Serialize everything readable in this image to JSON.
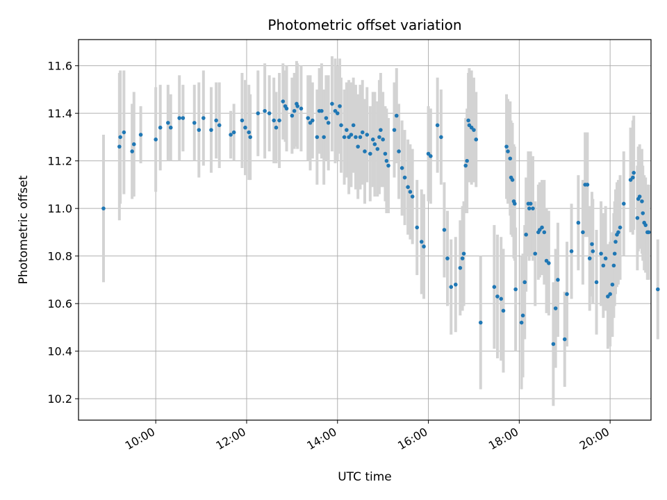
{
  "chart_data": {
    "type": "scatter",
    "title": "Photometric offset variation",
    "xlabel": "UTC time",
    "ylabel": "Photometric offset",
    "x_unit": "hours UTC",
    "xlim": [
      8.3,
      20.9
    ],
    "ylim": [
      10.11,
      11.71
    ],
    "x_ticks": [
      {
        "value": 10,
        "label": "10:00"
      },
      {
        "value": 12,
        "label": "12:00"
      },
      {
        "value": 14,
        "label": "14:00"
      },
      {
        "value": 16,
        "label": "16:00"
      },
      {
        "value": 18,
        "label": "18:00"
      },
      {
        "value": 20,
        "label": "20:00"
      }
    ],
    "y_ticks": [
      {
        "value": 10.2,
        "label": "10.2"
      },
      {
        "value": 10.4,
        "label": "10.4"
      },
      {
        "value": 10.6,
        "label": "10.6"
      },
      {
        "value": 10.8,
        "label": "10.8"
      },
      {
        "value": 11.0,
        "label": "11.0"
      },
      {
        "value": 11.2,
        "label": "11.2"
      },
      {
        "value": 11.4,
        "label": "11.4"
      },
      {
        "value": 11.6,
        "label": "11.6"
      }
    ],
    "grid": true,
    "legend": "none",
    "marker_color": "#1f77b4",
    "errorbar_color": "#d3d3d3",
    "points": [
      [
        8.85,
        11.0,
        0.31
      ],
      [
        9.2,
        11.26,
        0.31
      ],
      [
        9.22,
        11.3,
        0.28
      ],
      [
        9.3,
        11.32,
        0.26
      ],
      [
        9.48,
        11.24,
        0.2
      ],
      [
        9.52,
        11.27,
        0.22
      ],
      [
        9.67,
        11.31,
        0.12
      ],
      [
        10.0,
        11.29,
        0.22
      ],
      [
        10.1,
        11.34,
        0.18
      ],
      [
        10.27,
        11.36,
        0.16
      ],
      [
        10.33,
        11.34,
        0.14
      ],
      [
        10.52,
        11.38,
        0.18
      ],
      [
        10.6,
        11.38,
        0.14
      ],
      [
        10.85,
        11.36,
        0.16
      ],
      [
        10.95,
        11.33,
        0.2
      ],
      [
        11.05,
        11.38,
        0.2
      ],
      [
        11.22,
        11.33,
        0.18
      ],
      [
        11.33,
        11.37,
        0.16
      ],
      [
        11.4,
        11.35,
        0.18
      ],
      [
        11.65,
        11.31,
        0.1
      ],
      [
        11.72,
        11.32,
        0.12
      ],
      [
        11.9,
        11.37,
        0.2
      ],
      [
        11.97,
        11.34,
        0.2
      ],
      [
        12.05,
        11.32,
        0.2
      ],
      [
        12.08,
        11.3,
        0.18
      ],
      [
        12.25,
        11.4,
        0.18
      ],
      [
        12.4,
        11.41,
        0.2
      ],
      [
        12.5,
        11.4,
        0.16
      ],
      [
        12.6,
        11.37,
        0.18
      ],
      [
        12.65,
        11.34,
        0.15
      ],
      [
        12.72,
        11.37,
        0.2
      ],
      [
        12.8,
        11.45,
        0.16
      ],
      [
        12.85,
        11.43,
        0.15
      ],
      [
        12.88,
        11.42,
        0.18
      ],
      [
        13.0,
        11.39,
        0.16
      ],
      [
        13.05,
        11.41,
        0.16
      ],
      [
        13.1,
        11.44,
        0.18
      ],
      [
        13.12,
        11.43,
        0.18
      ],
      [
        13.2,
        11.42,
        0.18
      ],
      [
        13.35,
        11.38,
        0.18
      ],
      [
        13.4,
        11.36,
        0.2
      ],
      [
        13.45,
        11.37,
        0.16
      ],
      [
        13.55,
        11.3,
        0.2
      ],
      [
        13.6,
        11.41,
        0.18
      ],
      [
        13.65,
        11.41,
        0.2
      ],
      [
        13.7,
        11.3,
        0.2
      ],
      [
        13.75,
        11.38,
        0.18
      ],
      [
        13.8,
        11.36,
        0.2
      ],
      [
        13.88,
        11.44,
        0.2
      ],
      [
        13.95,
        11.41,
        0.22
      ],
      [
        14.0,
        11.4,
        0.2
      ],
      [
        14.05,
        11.43,
        0.2
      ],
      [
        14.08,
        11.35,
        0.2
      ],
      [
        14.15,
        11.3,
        0.2
      ],
      [
        14.2,
        11.33,
        0.2
      ],
      [
        14.25,
        11.3,
        0.24
      ],
      [
        14.3,
        11.31,
        0.22
      ],
      [
        14.35,
        11.35,
        0.2
      ],
      [
        14.4,
        11.3,
        0.22
      ],
      [
        14.45,
        11.26,
        0.22
      ],
      [
        14.5,
        11.3,
        0.22
      ],
      [
        14.55,
        11.32,
        0.22
      ],
      [
        14.6,
        11.24,
        0.22
      ],
      [
        14.65,
        11.31,
        0.2
      ],
      [
        14.72,
        11.23,
        0.2
      ],
      [
        14.78,
        11.29,
        0.2
      ],
      [
        14.82,
        11.27,
        0.22
      ],
      [
        14.88,
        11.25,
        0.2
      ],
      [
        14.92,
        11.3,
        0.24
      ],
      [
        14.95,
        11.33,
        0.24
      ],
      [
        15.0,
        11.29,
        0.2
      ],
      [
        15.05,
        11.23,
        0.2
      ],
      [
        15.08,
        11.2,
        0.22
      ],
      [
        15.12,
        11.18,
        0.2
      ],
      [
        15.25,
        11.33,
        0.2
      ],
      [
        15.3,
        11.39,
        0.2
      ],
      [
        15.35,
        11.24,
        0.2
      ],
      [
        15.42,
        11.17,
        0.2
      ],
      [
        15.48,
        11.13,
        0.2
      ],
      [
        15.55,
        11.09,
        0.2
      ],
      [
        15.6,
        11.07,
        0.2
      ],
      [
        15.65,
        11.05,
        0.2
      ],
      [
        15.75,
        10.92,
        0.2
      ],
      [
        15.85,
        10.86,
        0.22
      ],
      [
        15.9,
        10.84,
        0.22
      ],
      [
        16.0,
        11.23,
        0.2
      ],
      [
        16.05,
        11.22,
        0.2
      ],
      [
        16.2,
        11.35,
        0.2
      ],
      [
        16.28,
        11.3,
        0.2
      ],
      [
        16.35,
        10.91,
        0.2
      ],
      [
        16.42,
        10.79,
        0.2
      ],
      [
        16.5,
        10.67,
        0.2
      ],
      [
        16.6,
        10.68,
        0.2
      ],
      [
        16.7,
        10.75,
        0.2
      ],
      [
        16.75,
        10.79,
        0.22
      ],
      [
        16.78,
        10.81,
        0.22
      ],
      [
        16.82,
        11.18,
        0.2
      ],
      [
        16.85,
        11.2,
        0.22
      ],
      [
        16.88,
        11.37,
        0.2
      ],
      [
        16.9,
        11.35,
        0.24
      ],
      [
        16.95,
        11.34,
        0.24
      ],
      [
        17.0,
        11.33,
        0.22
      ],
      [
        17.05,
        11.29,
        0.2
      ],
      [
        17.15,
        10.52,
        0.28
      ],
      [
        17.45,
        10.67,
        0.26
      ],
      [
        17.52,
        10.63,
        0.26
      ],
      [
        17.6,
        10.62,
        0.26
      ],
      [
        17.65,
        10.57,
        0.26
      ],
      [
        17.72,
        11.26,
        0.22
      ],
      [
        17.75,
        11.24,
        0.22
      ],
      [
        17.8,
        11.21,
        0.24
      ],
      [
        17.82,
        11.13,
        0.24
      ],
      [
        17.85,
        11.12,
        0.24
      ],
      [
        17.88,
        11.03,
        0.24
      ],
      [
        17.9,
        11.02,
        0.24
      ],
      [
        17.92,
        10.66,
        0.26
      ],
      [
        18.05,
        10.52,
        0.28
      ],
      [
        18.08,
        10.55,
        0.26
      ],
      [
        18.12,
        10.69,
        0.24
      ],
      [
        18.15,
        10.89,
        0.24
      ],
      [
        18.2,
        11.02,
        0.22
      ],
      [
        18.22,
        11.0,
        0.22
      ],
      [
        18.25,
        11.02,
        0.22
      ],
      [
        18.3,
        11.0,
        0.22
      ],
      [
        18.35,
        10.81,
        0.22
      ],
      [
        18.42,
        10.9,
        0.2
      ],
      [
        18.45,
        10.91,
        0.2
      ],
      [
        18.5,
        10.92,
        0.2
      ],
      [
        18.55,
        10.9,
        0.22
      ],
      [
        18.6,
        10.78,
        0.22
      ],
      [
        18.65,
        10.77,
        0.22
      ],
      [
        18.75,
        10.43,
        0.26
      ],
      [
        18.8,
        10.58,
        0.25
      ],
      [
        18.85,
        10.7,
        0.24
      ],
      [
        19.0,
        10.45,
        0.2
      ],
      [
        19.05,
        10.64,
        0.22
      ],
      [
        19.15,
        10.82,
        0.2
      ],
      [
        19.3,
        10.94,
        0.2
      ],
      [
        19.4,
        10.9,
        0.22
      ],
      [
        19.45,
        11.1,
        0.22
      ],
      [
        19.5,
        11.1,
        0.22
      ],
      [
        19.55,
        10.79,
        0.22
      ],
      [
        19.6,
        10.85,
        0.22
      ],
      [
        19.62,
        10.82,
        0.22
      ],
      [
        19.7,
        10.69,
        0.22
      ],
      [
        19.8,
        10.81,
        0.22
      ],
      [
        19.85,
        10.76,
        0.22
      ],
      [
        19.9,
        10.79,
        0.22
      ],
      [
        19.95,
        10.63,
        0.22
      ],
      [
        20.0,
        10.64,
        0.22
      ],
      [
        20.05,
        10.68,
        0.22
      ],
      [
        20.08,
        10.76,
        0.22
      ],
      [
        20.1,
        10.81,
        0.22
      ],
      [
        20.12,
        10.86,
        0.22
      ],
      [
        20.15,
        10.89,
        0.22
      ],
      [
        20.18,
        10.9,
        0.22
      ],
      [
        20.22,
        10.92,
        0.22
      ],
      [
        20.3,
        11.02,
        0.22
      ],
      [
        20.45,
        11.12,
        0.22
      ],
      [
        20.5,
        11.13,
        0.24
      ],
      [
        20.52,
        11.15,
        0.24
      ],
      [
        20.6,
        10.96,
        0.22
      ],
      [
        20.62,
        11.04,
        0.22
      ],
      [
        20.65,
        11.05,
        0.22
      ],
      [
        20.7,
        11.03,
        0.22
      ],
      [
        20.72,
        10.98,
        0.2
      ],
      [
        20.75,
        10.94,
        0.2
      ],
      [
        20.78,
        10.93,
        0.2
      ],
      [
        20.82,
        10.9,
        0.2
      ],
      [
        20.85,
        10.9,
        0.2
      ],
      [
        21.05,
        10.66,
        0.21
      ]
    ]
  }
}
